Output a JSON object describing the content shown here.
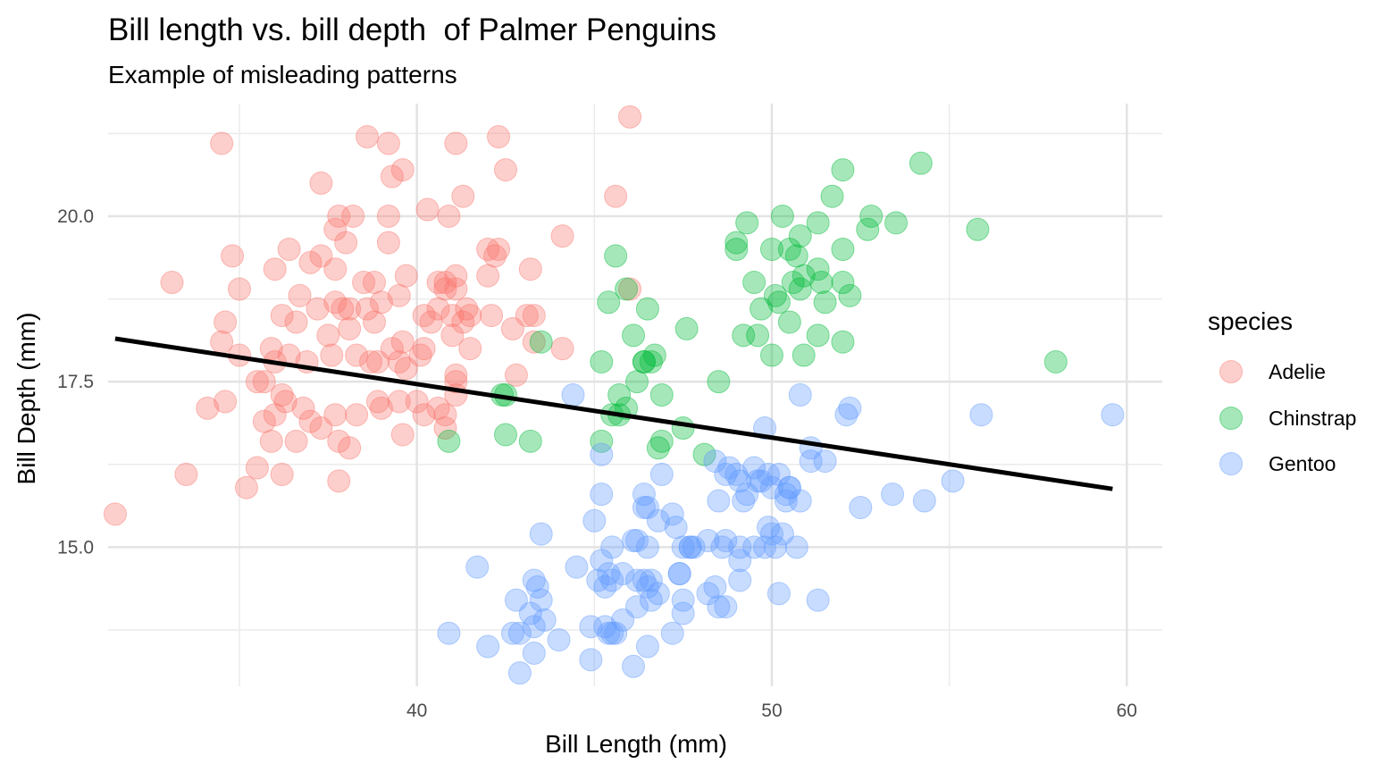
{
  "chart_data": {
    "type": "scatter",
    "title": "Bill length vs. bill depth  of Palmer Penguins",
    "subtitle": "Example of misleading patterns",
    "xlabel": "Bill Length (mm)",
    "ylabel": "Bill Depth (mm)",
    "xlim": [
      31.3,
      61.0
    ],
    "ylim": [
      12.9,
      21.7
    ],
    "x_ticks": [
      40,
      50,
      60
    ],
    "x_tick_labels": [
      "40",
      "50",
      "60"
    ],
    "y_ticks": [
      15.0,
      17.5,
      20.0
    ],
    "y_tick_labels": [
      "15.0",
      "17.5",
      "20.0"
    ],
    "grid": true,
    "legend": {
      "title": "species",
      "position": "right"
    },
    "point_alpha": 0.35,
    "series": [
      {
        "name": "Adelie",
        "color": "#F8766D",
        "points": [
          [
            34.5,
            21.1
          ],
          [
            38.6,
            21.2
          ],
          [
            39.2,
            21.1
          ],
          [
            41.1,
            21.1
          ],
          [
            42.3,
            21.2
          ],
          [
            46.0,
            21.5
          ],
          [
            42.5,
            20.7
          ],
          [
            37.8,
            20.0
          ],
          [
            38.2,
            20.0
          ],
          [
            39.2,
            20.0
          ],
          [
            40.3,
            20.1
          ],
          [
            40.9,
            20.0
          ],
          [
            41.3,
            20.3
          ],
          [
            39.3,
            20.6
          ],
          [
            39.6,
            20.7
          ],
          [
            37.3,
            20.5
          ],
          [
            45.6,
            20.3
          ],
          [
            37.7,
            19.8
          ],
          [
            36.4,
            19.5
          ],
          [
            38.0,
            19.6
          ],
          [
            39.2,
            19.6
          ],
          [
            42.0,
            19.5
          ],
          [
            42.3,
            19.5
          ],
          [
            42.2,
            19.4
          ],
          [
            44.1,
            19.7
          ],
          [
            34.8,
            19.4
          ],
          [
            36.0,
            19.2
          ],
          [
            37.0,
            19.3
          ],
          [
            37.7,
            19.2
          ],
          [
            37.3,
            19.4
          ],
          [
            38.8,
            19.0
          ],
          [
            38.5,
            19.0
          ],
          [
            39.7,
            19.1
          ],
          [
            40.6,
            19.0
          ],
          [
            41.1,
            19.1
          ],
          [
            41.1,
            18.9
          ],
          [
            40.8,
            18.9
          ],
          [
            42.0,
            19.1
          ],
          [
            43.2,
            19.2
          ],
          [
            43.3,
            18.5
          ],
          [
            33.1,
            19.0
          ],
          [
            35.0,
            18.9
          ],
          [
            36.2,
            18.5
          ],
          [
            36.7,
            18.8
          ],
          [
            37.2,
            18.6
          ],
          [
            37.7,
            18.7
          ],
          [
            37.9,
            18.6
          ],
          [
            38.1,
            18.6
          ],
          [
            38.6,
            18.6
          ],
          [
            39.0,
            18.7
          ],
          [
            39.5,
            18.8
          ],
          [
            40.2,
            18.5
          ],
          [
            40.6,
            18.6
          ],
          [
            41.0,
            18.5
          ],
          [
            40.8,
            19.0
          ],
          [
            41.5,
            18.5
          ],
          [
            41.4,
            18.6
          ],
          [
            42.1,
            18.5
          ],
          [
            42.7,
            18.3
          ],
          [
            43.1,
            18.5
          ],
          [
            46.0,
            18.9
          ],
          [
            34.6,
            18.4
          ],
          [
            36.6,
            18.4
          ],
          [
            37.5,
            18.2
          ],
          [
            38.1,
            18.3
          ],
          [
            38.8,
            18.4
          ],
          [
            39.3,
            18.0
          ],
          [
            39.6,
            18.1
          ],
          [
            40.2,
            18.0
          ],
          [
            40.4,
            18.4
          ],
          [
            41.0,
            18.2
          ],
          [
            41.3,
            18.4
          ],
          [
            41.5,
            18.0
          ],
          [
            43.3,
            18.1
          ],
          [
            44.1,
            18.0
          ],
          [
            34.5,
            18.1
          ],
          [
            35.0,
            17.9
          ],
          [
            35.9,
            18.0
          ],
          [
            36.4,
            17.9
          ],
          [
            36.0,
            17.8
          ],
          [
            36.9,
            17.8
          ],
          [
            37.6,
            17.9
          ],
          [
            38.3,
            17.9
          ],
          [
            38.7,
            17.8
          ],
          [
            38.9,
            17.8
          ],
          [
            39.5,
            17.8
          ],
          [
            39.7,
            17.7
          ],
          [
            40.1,
            17.9
          ],
          [
            41.1,
            17.6
          ],
          [
            42.8,
            17.6
          ],
          [
            34.1,
            17.1
          ],
          [
            34.6,
            17.2
          ],
          [
            35.5,
            17.5
          ],
          [
            35.7,
            17.5
          ],
          [
            36.2,
            17.3
          ],
          [
            36.3,
            17.2
          ],
          [
            36.8,
            17.1
          ],
          [
            37.0,
            16.9
          ],
          [
            37.3,
            16.8
          ],
          [
            37.7,
            17.0
          ],
          [
            38.3,
            17.0
          ],
          [
            38.9,
            17.2
          ],
          [
            39.0,
            17.1
          ],
          [
            39.5,
            17.2
          ],
          [
            40.0,
            17.2
          ],
          [
            40.2,
            17.0
          ],
          [
            40.6,
            17.1
          ],
          [
            40.8,
            17.0
          ],
          [
            41.1,
            17.5
          ],
          [
            41.1,
            17.3
          ],
          [
            35.7,
            16.9
          ],
          [
            36.0,
            17.0
          ],
          [
            35.9,
            16.6
          ],
          [
            36.6,
            16.6
          ],
          [
            37.8,
            16.6
          ],
          [
            39.6,
            16.7
          ],
          [
            40.8,
            16.8
          ],
          [
            33.5,
            16.1
          ],
          [
            35.2,
            15.9
          ],
          [
            35.5,
            16.2
          ],
          [
            36.2,
            16.1
          ],
          [
            37.8,
            16.0
          ],
          [
            38.1,
            16.5
          ],
          [
            31.5,
            15.5
          ]
        ]
      },
      {
        "name": "Chinstrap",
        "color": "#00BA38",
        "points": [
          [
            54.2,
            20.8
          ],
          [
            52.0,
            20.7
          ],
          [
            51.7,
            20.3
          ],
          [
            50.3,
            20.0
          ],
          [
            52.8,
            20.0
          ],
          [
            49.3,
            19.9
          ],
          [
            51.3,
            19.9
          ],
          [
            53.5,
            19.9
          ],
          [
            52.7,
            19.8
          ],
          [
            55.8,
            19.8
          ],
          [
            50.8,
            19.7
          ],
          [
            49.0,
            19.6
          ],
          [
            50.0,
            19.5
          ],
          [
            49.0,
            19.5
          ],
          [
            50.5,
            19.5
          ],
          [
            52.0,
            19.5
          ],
          [
            50.7,
            19.4
          ],
          [
            51.3,
            19.2
          ],
          [
            50.9,
            19.1
          ],
          [
            50.6,
            19.0
          ],
          [
            51.4,
            19.0
          ],
          [
            52.0,
            19.0
          ],
          [
            49.5,
            19.0
          ],
          [
            51.5,
            18.7
          ],
          [
            50.1,
            18.8
          ],
          [
            50.2,
            18.7
          ],
          [
            52.2,
            18.8
          ],
          [
            49.7,
            18.6
          ],
          [
            50.8,
            18.9
          ],
          [
            50.5,
            18.4
          ],
          [
            49.2,
            18.2
          ],
          [
            49.6,
            18.2
          ],
          [
            51.3,
            18.2
          ],
          [
            52.0,
            18.1
          ],
          [
            50.0,
            17.9
          ],
          [
            50.9,
            17.9
          ],
          [
            58.0,
            17.8
          ],
          [
            47.6,
            18.3
          ],
          [
            45.4,
            18.7
          ],
          [
            45.6,
            19.4
          ],
          [
            46.1,
            18.2
          ],
          [
            46.5,
            18.6
          ],
          [
            45.9,
            18.9
          ],
          [
            43.5,
            18.1
          ],
          [
            46.4,
            17.8
          ],
          [
            46.7,
            17.9
          ],
          [
            46.6,
            17.8
          ],
          [
            46.9,
            17.3
          ],
          [
            47.5,
            16.8
          ],
          [
            46.4,
            17.8
          ],
          [
            46.2,
            17.5
          ],
          [
            45.7,
            17.3
          ],
          [
            45.5,
            17.0
          ],
          [
            45.7,
            17.0
          ],
          [
            45.9,
            17.1
          ],
          [
            45.2,
            17.8
          ],
          [
            45.2,
            16.6
          ],
          [
            46.8,
            16.5
          ],
          [
            46.9,
            16.6
          ],
          [
            48.1,
            16.4
          ],
          [
            48.5,
            17.5
          ],
          [
            42.4,
            17.3
          ],
          [
            42.5,
            17.3
          ],
          [
            42.5,
            16.7
          ],
          [
            43.2,
            16.6
          ],
          [
            40.9,
            16.6
          ]
        ]
      },
      {
        "name": "Gentoo",
        "color": "#619CFF",
        "points": [
          [
            59.6,
            17.0
          ],
          [
            55.9,
            17.0
          ],
          [
            52.2,
            17.1
          ],
          [
            52.1,
            17.0
          ],
          [
            50.8,
            17.3
          ],
          [
            49.8,
            16.8
          ],
          [
            44.4,
            17.3
          ],
          [
            51.1,
            16.5
          ],
          [
            51.1,
            16.3
          ],
          [
            51.5,
            16.3
          ],
          [
            55.1,
            16.0
          ],
          [
            54.3,
            15.7
          ],
          [
            53.4,
            15.8
          ],
          [
            52.5,
            15.6
          ],
          [
            50.8,
            15.7
          ],
          [
            50.5,
            15.9
          ],
          [
            50.4,
            15.7
          ],
          [
            50.0,
            15.9
          ],
          [
            49.9,
            16.1
          ],
          [
            49.6,
            16.0
          ],
          [
            49.5,
            16.2
          ],
          [
            49.2,
            15.7
          ],
          [
            49.1,
            16.0
          ],
          [
            48.7,
            16.1
          ],
          [
            48.5,
            15.7
          ],
          [
            48.8,
            16.2
          ],
          [
            48.4,
            16.3
          ],
          [
            49.0,
            16.1
          ],
          [
            49.3,
            15.8
          ],
          [
            49.7,
            16.0
          ],
          [
            50.2,
            16.1
          ],
          [
            50.4,
            15.8
          ],
          [
            50.5,
            15.9
          ],
          [
            50.1,
            15.0
          ],
          [
            50.7,
            15.0
          ],
          [
            49.8,
            15.0
          ],
          [
            49.9,
            15.3
          ],
          [
            50.0,
            15.2
          ],
          [
            50.3,
            15.2
          ],
          [
            49.5,
            15.0
          ],
          [
            49.1,
            15.0
          ],
          [
            49.1,
            14.8
          ],
          [
            48.7,
            15.1
          ],
          [
            48.6,
            15.0
          ],
          [
            48.2,
            15.1
          ],
          [
            47.8,
            15.0
          ],
          [
            47.5,
            15.0
          ],
          [
            47.4,
            14.6
          ],
          [
            47.7,
            15.0
          ],
          [
            46.8,
            15.4
          ],
          [
            47.2,
            15.5
          ],
          [
            47.3,
            15.3
          ],
          [
            47.4,
            14.6
          ],
          [
            46.5,
            15.6
          ],
          [
            46.4,
            15.6
          ],
          [
            46.4,
            15.8
          ],
          [
            46.9,
            16.1
          ],
          [
            45.2,
            15.8
          ],
          [
            46.5,
            15.0
          ],
          [
            46.2,
            15.1
          ],
          [
            46.1,
            15.1
          ],
          [
            45.8,
            14.6
          ],
          [
            45.5,
            15.0
          ],
          [
            45.3,
            14.4
          ],
          [
            45.2,
            14.8
          ],
          [
            45.5,
            14.5
          ],
          [
            45.0,
            15.4
          ],
          [
            45.2,
            16.4
          ],
          [
            46.4,
            14.5
          ],
          [
            46.6,
            14.5
          ],
          [
            46.8,
            14.3
          ],
          [
            46.5,
            14.4
          ],
          [
            46.2,
            14.5
          ],
          [
            46.2,
            14.1
          ],
          [
            46.6,
            14.2
          ],
          [
            47.5,
            14.2
          ],
          [
            47.5,
            14.0
          ],
          [
            48.2,
            14.3
          ],
          [
            48.5,
            14.1
          ],
          [
            48.4,
            14.4
          ],
          [
            48.7,
            14.1
          ],
          [
            49.1,
            14.5
          ],
          [
            50.2,
            14.3
          ],
          [
            51.3,
            14.2
          ],
          [
            43.5,
            15.2
          ],
          [
            44.5,
            14.7
          ],
          [
            43.3,
            14.5
          ],
          [
            43.4,
            14.4
          ],
          [
            43.5,
            14.2
          ],
          [
            42.8,
            14.2
          ],
          [
            43.2,
            14.0
          ],
          [
            43.6,
            13.9
          ],
          [
            43.3,
            13.8
          ],
          [
            42.7,
            13.7
          ],
          [
            42.9,
            13.7
          ],
          [
            44.0,
            13.6
          ],
          [
            44.9,
            13.8
          ],
          [
            45.3,
            13.8
          ],
          [
            45.5,
            13.7
          ],
          [
            45.1,
            14.5
          ],
          [
            45.4,
            14.6
          ],
          [
            45.8,
            13.9
          ],
          [
            45.6,
            13.7
          ],
          [
            45.4,
            13.7
          ],
          [
            47.2,
            13.7
          ],
          [
            46.5,
            13.5
          ],
          [
            43.3,
            13.4
          ],
          [
            44.9,
            13.3
          ],
          [
            42.0,
            13.5
          ],
          [
            46.1,
            13.2
          ],
          [
            42.9,
            13.1
          ],
          [
            40.9,
            13.7
          ],
          [
            41.7,
            14.7
          ],
          [
            47.7,
            15.0
          ]
        ]
      }
    ],
    "regression_line": {
      "x": [
        31.5,
        59.6
      ],
      "y": [
        18.15,
        15.88
      ],
      "color": "#000000"
    }
  }
}
